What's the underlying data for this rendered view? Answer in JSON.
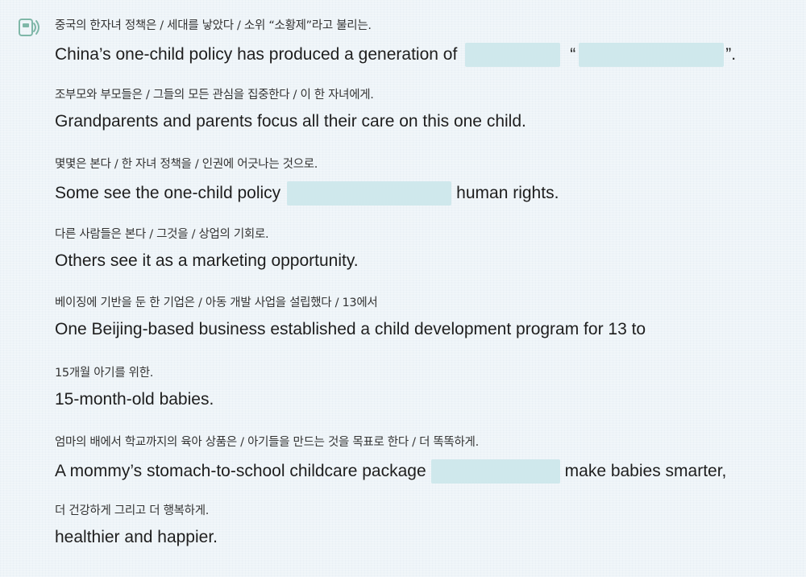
{
  "lines": [
    {
      "korean": "중국의 한자녀 정책은 / 세대를 낳았다 / 소위 “소황제”라고 불리는.",
      "english_a": "China’s one-child policy has produced a generation of",
      "english_b": "“",
      "english_c": "”."
    },
    {
      "korean": "조부모와 부모들은 /  그들의 모든 관심을 집중한다 / 이 한 자녀에게.",
      "english": "Grandparents and parents focus all their care on this one child."
    },
    {
      "korean": "몇몇은 본다 / 한 자녀 정책을 / 인권에 어긋나는 것으로.",
      "english_a": "Some see the one-child policy",
      "english_b": "human rights."
    },
    {
      "korean": "다른 사람들은 본다 / 그것을 / 상업의 기회로.",
      "english": "Others see it as a marketing opportunity."
    },
    {
      "korean": "베이징에 기반을 둔 한 기업은 / 아동 개발 사업을 설립했다 / 13에서",
      "english": "One Beijing-based business established a child development program for 13 to"
    },
    {
      "korean": "15개월 아기를 위한.",
      "english": "15-month-old babies."
    },
    {
      "korean": "엄마의 배에서 학교까지의 육아 상품은 / 아기들을 만드는 것을 목표로 한다 / 더 똑똑하게.",
      "english_a": "A mommy’s stomach-to-school childcare package",
      "english_b": "make babies smarter,"
    },
    {
      "korean": "더 건강하게 그리고 더 행복하게.",
      "english": "healthier and happier."
    }
  ],
  "colors": {
    "background": "#eef4f8",
    "blank_fill": "#cfe8ec",
    "icon": "#7fb7a8"
  },
  "icons": {
    "speaker": "listening-speaker-icon"
  }
}
